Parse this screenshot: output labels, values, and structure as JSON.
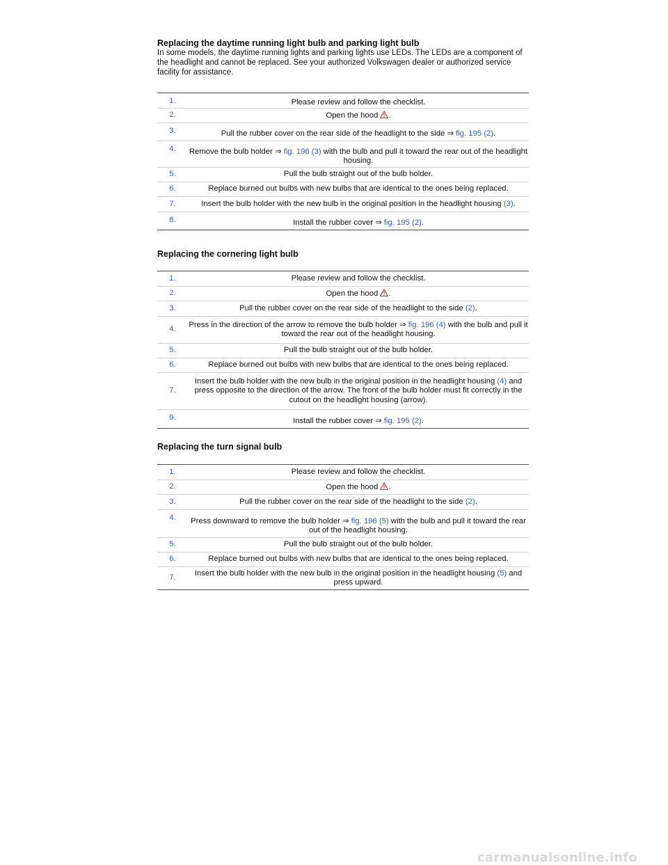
{
  "section1": {
    "title": "Replacing the daytime running light bulb and parking light bulb",
    "intro": "In some models, the daytime running lights and parking lights use LEDs. The LEDs are a component of the headlight and cannot be replaced. See your authorized Volkswagen dealer or authorized service facility for assistance.",
    "steps": [
      {
        "num": "1.",
        "text": "Please review and follow the checklist."
      },
      {
        "num": "2.",
        "pre": "Open the hood ",
        "warning": true,
        "post": "."
      },
      {
        "num": "3.",
        "pre": "Pull the rubber cover on the rear side of the headlight to the side ⇒ ",
        "link": "fig. 195 (2)",
        "post": "."
      },
      {
        "num": "4.",
        "pre": "Remove the bulb holder ⇒ ",
        "link": "fig. 196 (3)",
        "post": " with the bulb and pull it toward the rear out of the headlight housing."
      },
      {
        "num": "5.",
        "text": "Pull the bulb straight out of the bulb holder."
      },
      {
        "num": "6.",
        "text": "Replace burned out bulbs with new bulbs that are identical to the ones being replaced."
      },
      {
        "num": "7.",
        "pre": "Insert the bulb holder with the new bulb in the original position in the headlight housing ",
        "link": "(3)",
        "post": "."
      },
      {
        "num": "8.",
        "pre": "Install the rubber cover ⇒ ",
        "link": "fig. 195 (2)",
        "post": "."
      }
    ]
  },
  "section2": {
    "title": "Replacing the cornering light bulb",
    "steps": [
      {
        "num": "1.",
        "text": "Please review and follow the checklist."
      },
      {
        "num": "2.",
        "pre": "Open the hood ",
        "warning": true,
        "post": "."
      },
      {
        "num": "3.",
        "pre": "Pull the rubber cover on the rear side of the headlight to the side ",
        "link": "(2)",
        "post": "."
      },
      {
        "num": "4.",
        "pre": "Press in the direction of the arrow to remove the bulb holder ⇒ ",
        "link": "fig. 196 (4)",
        "post": " with the bulb and pull it toward the rear out of the headlight housing."
      },
      {
        "num": "5.",
        "text": "Pull the bulb straight out of the bulb holder."
      },
      {
        "num": "6.",
        "text": "Replace burned out bulbs with new bulbs that are identical to the ones being replaced."
      },
      {
        "num": "7.",
        "pre": "Insert the bulb holder with the new bulb in the original position in the headlight housing ",
        "link": "(4)",
        "post": " and press opposite to the direction of the arrow. The front of the bulb holder must fit correctly in the cutout on the headlight housing (arrow)."
      },
      {
        "num": "9.",
        "pre": "Install the rubber cover ⇒ ",
        "link": "fig. 195 (2)",
        "post": "."
      }
    ]
  },
  "section3": {
    "title": "Replacing the turn signal bulb",
    "steps": [
      {
        "num": "1.",
        "text": "Please review and follow the checklist."
      },
      {
        "num": "2.",
        "pre": "Open the hood ",
        "warning": true,
        "post": "."
      },
      {
        "num": "3.",
        "pre": "Pull the rubber cover on the rear side of the headlight to the side ",
        "link": "(2)",
        "post": "."
      },
      {
        "num": "4.",
        "pre": "Press downward to remove the bulb holder ⇒ ",
        "link": "fig. 196 (5)",
        "post": " with the bulb and pull it toward the rear out of the headlight housing."
      },
      {
        "num": "5.",
        "text": "Pull the bulb straight out of the bulb holder."
      },
      {
        "num": "6.",
        "text": "Replace burned out bulbs with new bulbs that are identical to the ones being replaced."
      },
      {
        "num": "7.",
        "pre": "Insert the bulb holder with the new bulb in the original position in the headlight housing ",
        "link": "(5)",
        "post": " and press upward."
      }
    ]
  },
  "footer": "carmanualsonline.info",
  "colors": {
    "link": "#2f5fd0",
    "warning": "#c0392b"
  }
}
